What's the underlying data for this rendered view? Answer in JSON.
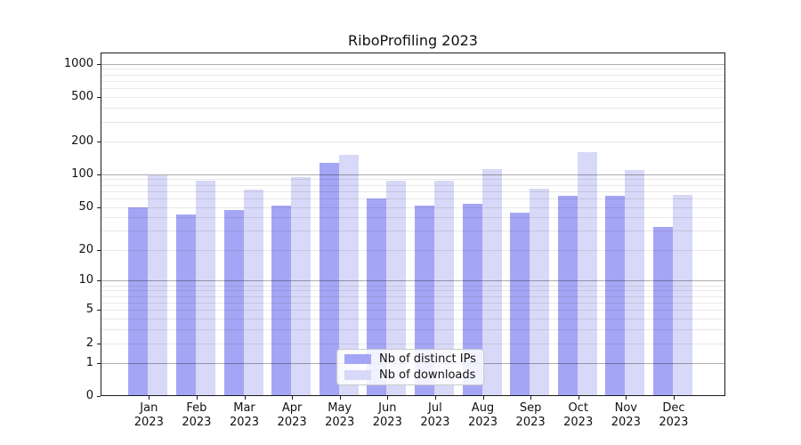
{
  "chart_data": {
    "type": "bar",
    "title": "RiboProfiling 2023",
    "xlabel": "",
    "ylabel": "",
    "categories": [
      "Jan 2023",
      "Feb 2023",
      "Mar 2023",
      "Apr 2023",
      "May 2023",
      "Jun 2023",
      "Jul 2023",
      "Aug 2023",
      "Sep 2023",
      "Oct 2023",
      "Nov 2023",
      "Dec 2023"
    ],
    "series": [
      {
        "name": "Nb of distinct IPs",
        "color": "#a5a5f5",
        "values": [
          50,
          43,
          47,
          52,
          127,
          60,
          52,
          54,
          44,
          63,
          63,
          33
        ]
      },
      {
        "name": "Nb of downloads",
        "color": "#d8d8f8",
        "values": [
          97,
          88,
          72,
          94,
          150,
          87,
          87,
          111,
          74,
          160,
          110,
          65
        ]
      }
    ],
    "yaxis": {
      "scale": "symlog (log1p)",
      "ticks": [
        0,
        1,
        2,
        5,
        10,
        20,
        50,
        100,
        200,
        500,
        1000
      ],
      "major_gridlines": [
        1,
        10,
        100,
        1000
      ],
      "minor_gridlines": [
        2,
        3,
        4,
        5,
        6,
        7,
        8,
        9,
        20,
        30,
        40,
        50,
        60,
        70,
        80,
        90,
        200,
        300,
        400,
        500,
        600,
        700,
        800,
        900
      ],
      "ylim": [
        0,
        1270
      ],
      "grid": "on"
    },
    "legend_position": "lower center"
  },
  "colors": {
    "bar_dark": "#a5a5f5",
    "bar_light": "#d8d8f8",
    "grid_major": "#b0b0b0",
    "grid_minor": "#e8e8e8",
    "axis": "#1a1a1a",
    "background": "#ffffff"
  }
}
